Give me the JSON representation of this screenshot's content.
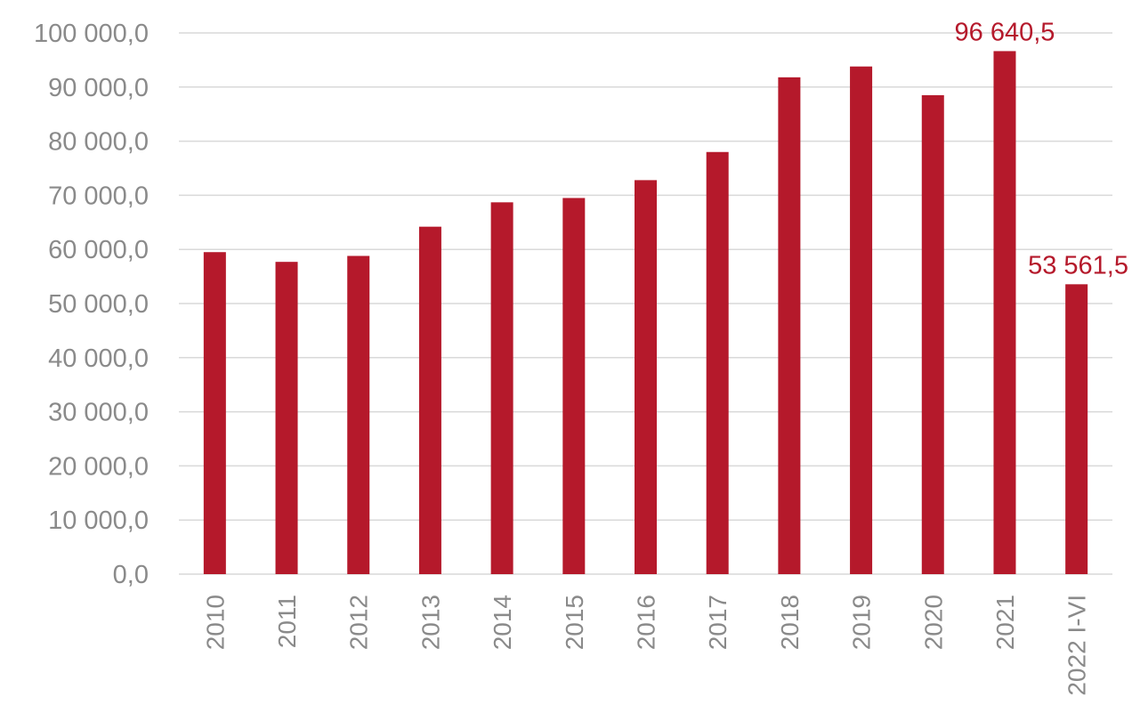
{
  "chart_data": {
    "type": "bar",
    "title": "",
    "xlabel": "",
    "ylabel": "",
    "categories": [
      "2010",
      "2011",
      "2012",
      "2013",
      "2014",
      "2015",
      "2016",
      "2017",
      "2018",
      "2019",
      "2020",
      "2021",
      "2022 I-VI"
    ],
    "values": [
      59500,
      57700,
      58800,
      64200,
      68700,
      69500,
      72800,
      78000,
      91800,
      93800,
      88500,
      96640.5,
      53561.5
    ],
    "ylim": [
      0,
      100000
    ],
    "y_ticks": [
      {
        "value": 0,
        "label": "0,0"
      },
      {
        "value": 10000,
        "label": "10 000,0"
      },
      {
        "value": 20000,
        "label": "20 000,0"
      },
      {
        "value": 30000,
        "label": "30 000,0"
      },
      {
        "value": 40000,
        "label": "40 000,0"
      },
      {
        "value": 50000,
        "label": "50 000,0"
      },
      {
        "value": 60000,
        "label": "60 000,0"
      },
      {
        "value": 70000,
        "label": "70 000,0"
      },
      {
        "value": 80000,
        "label": "80 000,0"
      },
      {
        "value": 90000,
        "label": "90 000,0"
      },
      {
        "value": 100000,
        "label": "100 000,0"
      }
    ],
    "data_labels": [
      {
        "category": "2021",
        "text": "96 640,5"
      },
      {
        "category": "2022 I-VI",
        "text": "53 561,5"
      }
    ],
    "grid": true,
    "legend": "none",
    "bar_color": "#b5192b",
    "label_color": "#b5192b"
  }
}
